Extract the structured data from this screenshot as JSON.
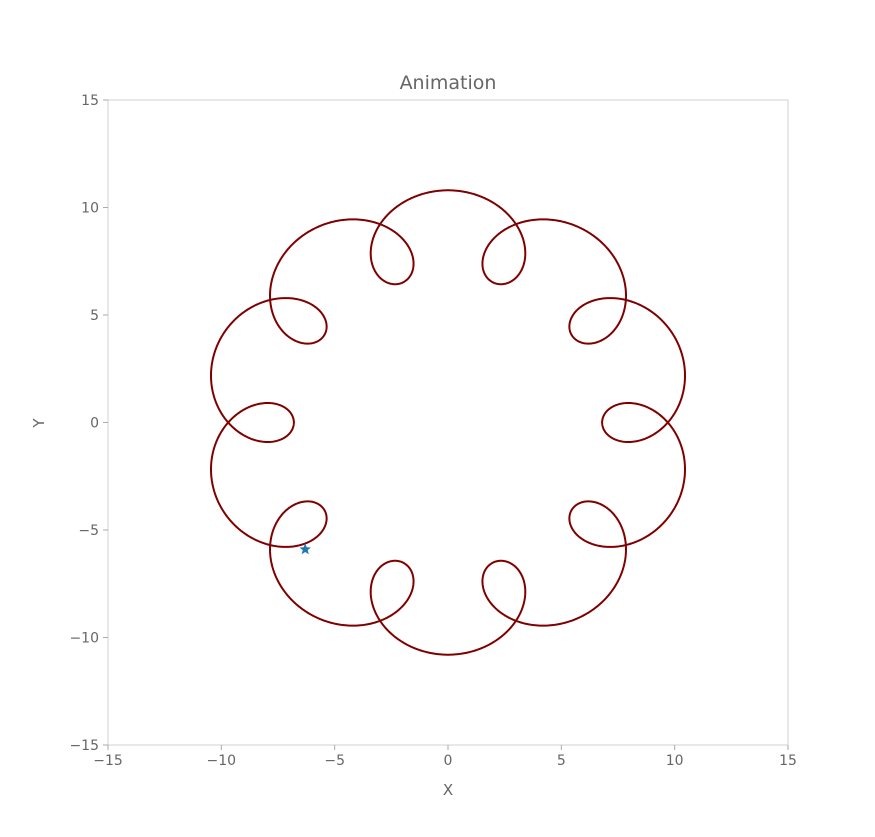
{
  "chart_data": {
    "type": "line",
    "title": "Animation",
    "xlabel": "X",
    "ylabel": "Y",
    "xlim": [
      -15,
      15
    ],
    "ylim": [
      -15,
      15
    ],
    "xticks": [
      -15,
      -10,
      -5,
      0,
      5,
      10,
      15
    ],
    "yticks": [
      -15,
      -10,
      -5,
      0,
      5,
      10,
      15
    ],
    "xtick_labels": [
      "−15",
      "−10",
      "−5",
      "0",
      "5",
      "10",
      "15"
    ],
    "ytick_labels": [
      "−15",
      "−10",
      "−5",
      "0",
      "5",
      "10",
      "15"
    ],
    "grid": false,
    "series": [
      {
        "kind": "epicycloid",
        "R": 8,
        "r": 0.8,
        "d": 2,
        "cusps": 10,
        "t_range": [
          0,
          6.2832
        ],
        "color": "#7f0000"
      }
    ],
    "marker": {
      "x": -6.3,
      "y": -5.9,
      "shape": "star",
      "color": "#1f77b4"
    }
  }
}
